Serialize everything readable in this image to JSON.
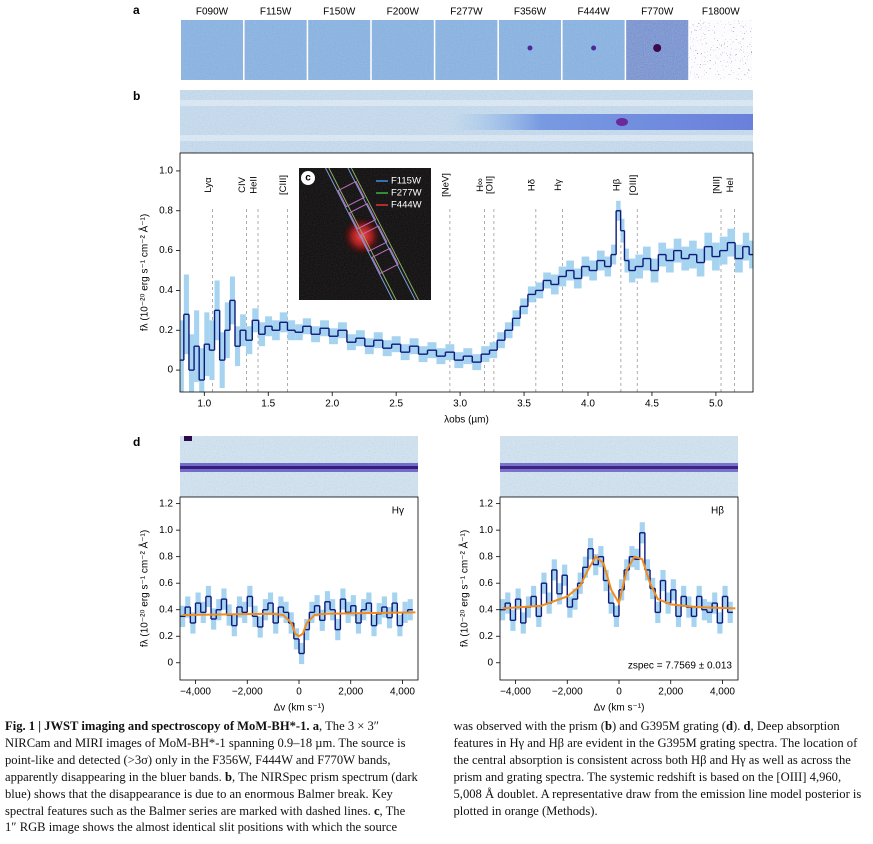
{
  "panel_labels": [
    "a",
    "b",
    "d"
  ],
  "filters": [
    "F090W",
    "F115W",
    "F150W",
    "F200W",
    "F277W",
    "F356W",
    "F444W",
    "F770W",
    "F1800W"
  ],
  "inset": {
    "label": "c",
    "legend": [
      {
        "name": "F115W",
        "color": "#3f8ee0"
      },
      {
        "name": "F277W",
        "color": "#3cb043"
      },
      {
        "name": "F444W",
        "color": "#e03434"
      }
    ]
  },
  "chart_data": [
    {
      "type": "line",
      "xlabel": "λobs (µm)",
      "ylabel": "fλ (10⁻²⁰ erg s⁻¹ cm⁻² Å⁻¹)",
      "xlim": [
        0.81,
        5.29
      ],
      "ylim": [
        -0.11,
        1.09
      ],
      "xticks": [
        {
          "value": 1,
          "label": "1.0"
        },
        1.5,
        {
          "value": 2,
          "label": "2.0"
        },
        2.5,
        {
          "value": 3,
          "label": "3.0"
        },
        3.5,
        {
          "value": 4,
          "label": "4.0"
        },
        4.5,
        {
          "value": 5,
          "label": "5.0"
        }
      ],
      "yticks": [
        0,
        0.2,
        0.4,
        0.6,
        0.8,
        {
          "value": 1,
          "label": "1.0"
        }
      ],
      "lines": [
        {
          "label": "Lyα",
          "x": 1.065
        },
        {
          "label": "CIV",
          "x": 1.33
        },
        {
          "label": "HeII",
          "x": 1.42
        },
        {
          "label": "[CIII]",
          "x": 1.65
        },
        {
          "label": "[NeV]",
          "x": 2.92
        },
        {
          "label": "H∞",
          "x": 3.19
        },
        {
          "label": "[OII]",
          "x": 3.264
        },
        {
          "label": "Hδ",
          "x": 3.592
        },
        {
          "label": "Hγ",
          "x": 3.8
        },
        {
          "label": "Hβ",
          "x": 4.257
        },
        {
          "label": "[OIII]",
          "x": 4.385
        },
        {
          "label": "[NII]",
          "x": 5.04
        },
        {
          "label": "HeI",
          "x": 5.146
        }
      ],
      "series": [
        {
          "style": "step",
          "color": "#0d1b7a",
          "error_color": "#a6d4f0",
          "x": [
            0.82,
            0.86,
            0.9,
            0.94,
            0.98,
            1.02,
            1.06,
            1.1,
            1.14,
            1.18,
            1.22,
            1.26,
            1.3,
            1.35,
            1.4,
            1.45,
            1.5,
            1.56,
            1.62,
            1.68,
            1.74,
            1.8,
            1.87,
            1.94,
            2.01,
            2.08,
            2.15,
            2.22,
            2.29,
            2.36,
            2.43,
            2.5,
            2.57,
            2.64,
            2.71,
            2.78,
            2.85,
            2.92,
            2.99,
            3.06,
            3.13,
            3.2,
            3.26,
            3.32,
            3.38,
            3.44,
            3.5,
            3.56,
            3.62,
            3.68,
            3.74,
            3.8,
            3.86,
            3.92,
            3.98,
            4.04,
            4.1,
            4.16,
            4.2,
            4.24,
            4.27,
            4.3,
            4.34,
            4.4,
            4.46,
            4.52,
            4.58,
            4.64,
            4.7,
            4.76,
            4.82,
            4.88,
            4.94,
            5.0,
            5.06,
            5.12,
            5.18,
            5.24,
            5.28
          ],
          "values": [
            0.05,
            0.28,
            0.0,
            0.12,
            -0.05,
            0.13,
            0.1,
            0.3,
            0.05,
            0.2,
            0.35,
            0.12,
            0.2,
            0.15,
            0.25,
            0.18,
            0.22,
            0.2,
            0.24,
            0.2,
            0.19,
            0.22,
            0.18,
            0.21,
            0.17,
            0.2,
            0.14,
            0.16,
            0.12,
            0.15,
            0.11,
            0.13,
            0.09,
            0.12,
            0.08,
            0.1,
            0.07,
            0.09,
            0.05,
            0.07,
            0.04,
            0.08,
            0.1,
            0.15,
            0.2,
            0.26,
            0.32,
            0.38,
            0.4,
            0.45,
            0.43,
            0.47,
            0.5,
            0.46,
            0.52,
            0.5,
            0.55,
            0.52,
            0.58,
            0.8,
            0.7,
            0.55,
            0.5,
            0.52,
            0.56,
            0.5,
            0.58,
            0.55,
            0.6,
            0.56,
            0.58,
            0.54,
            0.62,
            0.57,
            0.6,
            0.64,
            0.56,
            0.62,
            0.58
          ],
          "errors": [
            0.2,
            0.2,
            0.18,
            0.18,
            0.16,
            0.16,
            0.15,
            0.15,
            0.14,
            0.14,
            0.12,
            0.1,
            0.08,
            0.07,
            0.06,
            0.06,
            0.05,
            0.05,
            0.05,
            0.05,
            0.04,
            0.04,
            0.04,
            0.04,
            0.04,
            0.04,
            0.04,
            0.04,
            0.04,
            0.04,
            0.04,
            0.04,
            0.04,
            0.04,
            0.04,
            0.04,
            0.04,
            0.04,
            0.04,
            0.04,
            0.04,
            0.04,
            0.04,
            0.04,
            0.04,
            0.04,
            0.04,
            0.04,
            0.04,
            0.04,
            0.05,
            0.05,
            0.05,
            0.05,
            0.05,
            0.05,
            0.05,
            0.05,
            0.05,
            0.05,
            0.06,
            0.06,
            0.06,
            0.06,
            0.06,
            0.06,
            0.06,
            0.06,
            0.06,
            0.06,
            0.07,
            0.07,
            0.07,
            0.07,
            0.07,
            0.07,
            0.07,
            0.07,
            0.07
          ]
        }
      ]
    },
    {
      "type": "line",
      "xlabel": "Δv (km s⁻¹)",
      "ylabel": "fλ (10⁻²⁰ erg s⁻¹ cm⁻² Å⁻¹)",
      "annotation": "Hγ",
      "xlim": [
        -4600,
        4600
      ],
      "ylim": [
        -0.13,
        1.25
      ],
      "xticks": [
        {
          "value": -4000,
          "label": "−4,000"
        },
        {
          "value": -2000,
          "label": "−2,000"
        },
        0,
        {
          "value": 2000,
          "label": "2,000"
        },
        {
          "value": 4000,
          "label": "4,000"
        }
      ],
      "yticks": [
        0,
        0.2,
        0.4,
        0.6,
        0.8,
        {
          "value": 1,
          "label": "1.0"
        },
        1.2
      ],
      "series": [
        {
          "style": "step",
          "color": "#0d1b7a",
          "error_color": "#a6d4f0",
          "error": 0.08,
          "x": [
            -4500,
            -4300,
            -4100,
            -3900,
            -3700,
            -3500,
            -3300,
            -3100,
            -2900,
            -2700,
            -2500,
            -2300,
            -2100,
            -1900,
            -1700,
            -1500,
            -1300,
            -1100,
            -900,
            -700,
            -500,
            -300,
            -100,
            100,
            300,
            500,
            700,
            900,
            1100,
            1300,
            1500,
            1700,
            1900,
            2100,
            2300,
            2500,
            2700,
            2900,
            3100,
            3300,
            3500,
            3700,
            3900,
            4100,
            4300
          ],
          "values": [
            0.35,
            0.42,
            0.3,
            0.45,
            0.38,
            0.5,
            0.33,
            0.4,
            0.48,
            0.36,
            0.28,
            0.42,
            0.38,
            0.5,
            0.35,
            0.27,
            0.4,
            0.45,
            0.3,
            0.42,
            0.38,
            0.3,
            0.18,
            0.07,
            0.25,
            0.38,
            0.43,
            0.32,
            0.46,
            0.4,
            0.25,
            0.48,
            0.38,
            0.43,
            0.3,
            0.4,
            0.45,
            0.28,
            0.37,
            0.42,
            0.34,
            0.45,
            0.28,
            0.38,
            0.4
          ]
        },
        {
          "style": "line",
          "color": "#f28c1e",
          "x": [
            -4500,
            -1000,
            -600,
            -300,
            -150,
            0,
            150,
            300,
            600,
            1000,
            4500
          ],
          "values": [
            0.36,
            0.37,
            0.36,
            0.3,
            0.22,
            0.2,
            0.22,
            0.3,
            0.36,
            0.37,
            0.38
          ]
        }
      ]
    },
    {
      "type": "line",
      "xlabel": "Δv (km s⁻¹)",
      "ylabel": "fλ (10⁻²⁰ erg s⁻¹ cm⁻² Å⁻¹)",
      "annotation": "Hβ",
      "note": "zspec = 7.7569 ± 0.013",
      "xlim": [
        -4600,
        4600
      ],
      "ylim": [
        -0.13,
        1.25
      ],
      "xticks": [
        {
          "value": -4000,
          "label": "−4,000"
        },
        {
          "value": -2000,
          "label": "−2,000"
        },
        0,
        {
          "value": 2000,
          "label": "2,000"
        },
        {
          "value": 4000,
          "label": "4,000"
        }
      ],
      "yticks": [
        0,
        0.2,
        0.4,
        0.6,
        0.8,
        {
          "value": 1,
          "label": "1.0"
        },
        1.2
      ],
      "series": [
        {
          "style": "step",
          "color": "#0d1b7a",
          "error_color": "#a6d4f0",
          "error": 0.08,
          "x": [
            -4500,
            -4300,
            -4100,
            -3900,
            -3700,
            -3500,
            -3300,
            -3100,
            -2900,
            -2700,
            -2500,
            -2300,
            -2100,
            -1900,
            -1700,
            -1500,
            -1300,
            -1100,
            -900,
            -700,
            -500,
            -300,
            -100,
            100,
            300,
            500,
            700,
            900,
            1100,
            1300,
            1500,
            1700,
            1900,
            2100,
            2300,
            2500,
            2700,
            2900,
            3100,
            3300,
            3500,
            3700,
            3900,
            4100,
            4300
          ],
          "values": [
            0.4,
            0.45,
            0.32,
            0.48,
            0.3,
            0.42,
            0.5,
            0.35,
            0.6,
            0.45,
            0.7,
            0.52,
            0.66,
            0.42,
            0.48,
            0.6,
            0.72,
            0.86,
            0.74,
            0.8,
            0.62,
            0.45,
            0.35,
            0.55,
            0.7,
            0.8,
            0.78,
            0.98,
            0.7,
            0.56,
            0.38,
            0.62,
            0.45,
            0.55,
            0.35,
            0.5,
            0.42,
            0.35,
            0.5,
            0.4,
            0.38,
            0.45,
            0.3,
            0.5,
            0.38
          ]
        },
        {
          "style": "line",
          "color": "#f28c1e",
          "x": [
            -4500,
            -3000,
            -2000,
            -1500,
            -1200,
            -900,
            -600,
            -300,
            0,
            300,
            600,
            900,
            1200,
            1500,
            2000,
            3000,
            4500
          ],
          "values": [
            0.41,
            0.43,
            0.5,
            0.58,
            0.7,
            0.8,
            0.75,
            0.55,
            0.45,
            0.7,
            0.8,
            0.78,
            0.6,
            0.48,
            0.44,
            0.42,
            0.41
          ]
        }
      ]
    }
  ],
  "caption": [
    {
      "text": "Fig. 1 | JWST imaging and spectroscopy of MoM-BH*-1. a",
      "bold": true
    },
    ", The 3 × 3″ NIRCam and MIRI images of MoM-BH*-1 spanning 0.9–18 µm. The source is point-like and detected (>3σ) only in the F356W, F444W and F770W bands, apparently disappearing in the bluer bands. ",
    {
      "text": "b",
      "bold": true
    },
    ", The NIRSpec prism spectrum (dark blue) shows that the disappearance is due to an enormous Balmer break. Key spectral features such as the Balmer series are marked with dashed lines. ",
    {
      "text": "c",
      "bold": true
    },
    ", The 1″ RGB image shows the almost identical slit positions with which the source was observed with the prism (",
    {
      "text": "b",
      "bold": true
    },
    ") and G395M grating (",
    {
      "text": "d",
      "bold": true
    },
    "). ",
    {
      "text": "d",
      "bold": true
    },
    ", Deep absorption features in Hγ and Hβ are evident in the G395M grating spectra. The location of the central absorption is consistent across both Hβ and Hγ as well as across the prism and grating spectra. The systemic redshift is based on the [OIII] 4,960, 5,008 Å doublet. A representative draw from the emission line model posterior is plotted in orange (Methods)."
  ]
}
